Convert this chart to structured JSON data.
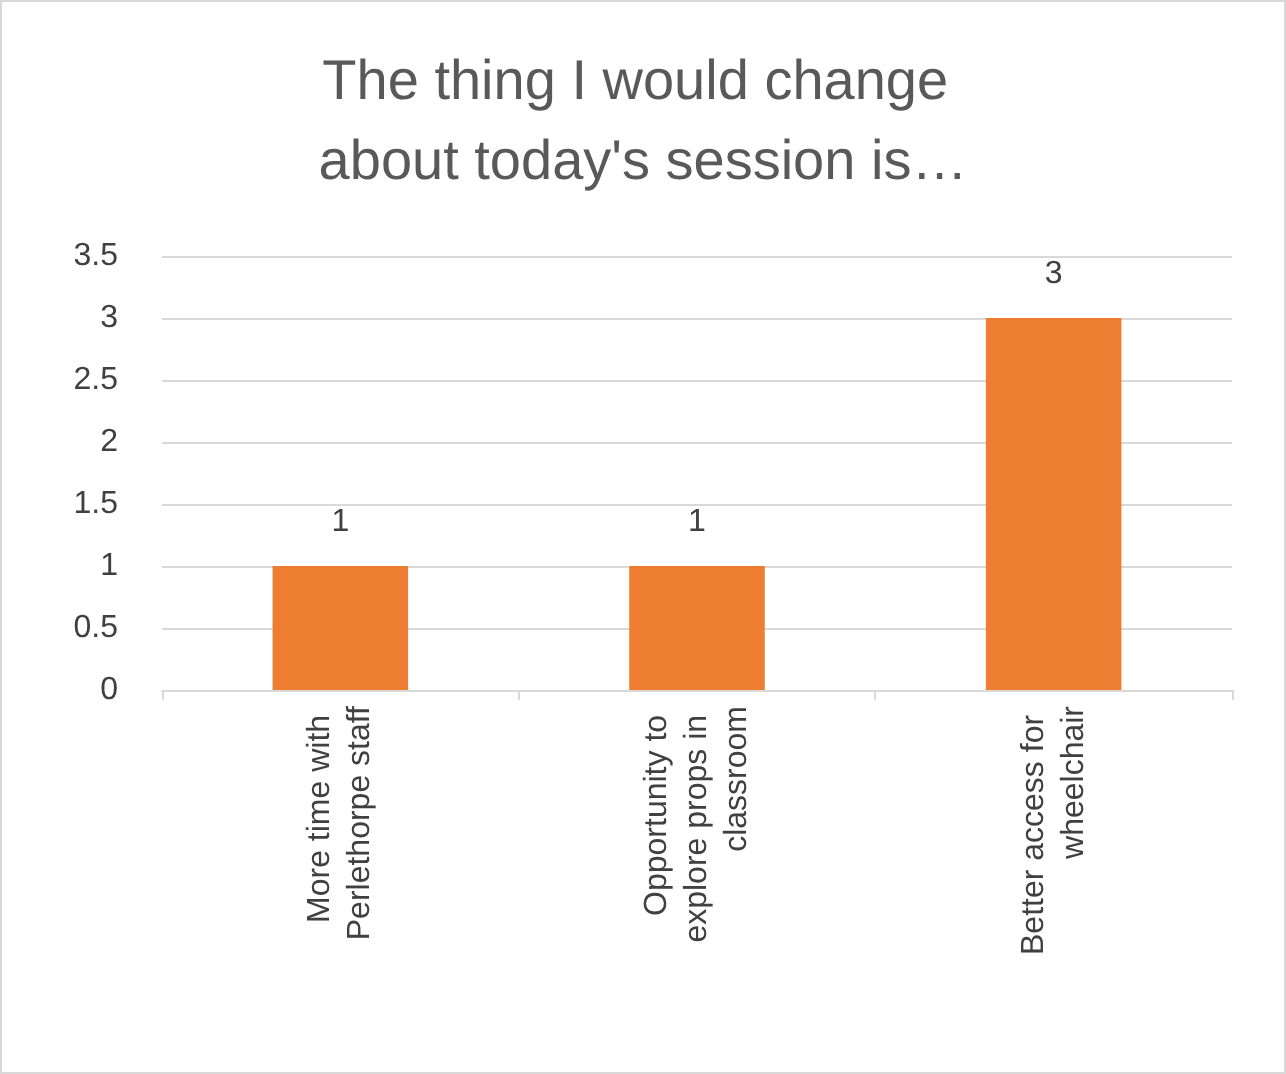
{
  "chart_data": {
    "type": "bar",
    "title": "The thing I would change about today's session is…",
    "categories": [
      "More time with Perlethorpe staff",
      "Opportunity to explore props in classroom",
      "Better access for wheelchair"
    ],
    "values": [
      1,
      1,
      3
    ],
    "color": "#ed7d31",
    "ylim": [
      0,
      3.5
    ],
    "yticks": [
      0,
      0.5,
      1,
      1.5,
      2,
      2.5,
      3,
      3.5
    ],
    "grid": "y",
    "data_labels": true
  }
}
